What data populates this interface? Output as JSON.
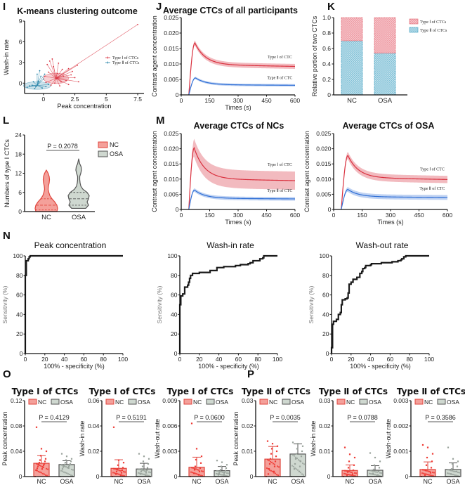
{
  "panels": {
    "I": {
      "letter": "I",
      "title": "K-means clustering outcome"
    },
    "J": {
      "letter": "J",
      "title": "Average CTCs of all participants"
    },
    "K": {
      "letter": "K"
    },
    "L": {
      "letter": "L"
    },
    "M": {
      "letter": "M",
      "title_nc": "Average CTCs of NCs",
      "title_osa": "Average CTCs of OSA"
    },
    "N": {
      "letter": "N"
    },
    "O": {
      "letter": "O"
    },
    "P": {
      "letter": "P"
    }
  },
  "colors": {
    "type1": "#d9303e",
    "type1_band": "#eda3aa",
    "type2": "#2f6fd6",
    "type2_band": "#a9c3ee",
    "cluster1": "#d9303e",
    "cluster2": "#1f7fa5",
    "nc_fill": "#f4a09a",
    "nc_stroke": "#e0463e",
    "osa_fill": "#cfd8d0",
    "osa_stroke": "#555555",
    "k_type1": "#e58a93",
    "k_type2": "#7fc0d6"
  },
  "chart_data": [
    {
      "id": "I",
      "type": "scatter",
      "title": "K-means clustering outcome",
      "xlabel": "Peak concentration",
      "ylabel": "Wash-in rate",
      "xlim": [
        -1.5,
        8
      ],
      "ylim": [
        -1.5,
        9
      ],
      "xticks": [
        "0",
        "2.5",
        "5",
        "7.5"
      ],
      "xtick_values": [
        0,
        2.5,
        5,
        7.5
      ],
      "yticks": [
        "0",
        "3",
        "6",
        "9"
      ],
      "ytick_values": [
        0,
        3,
        6,
        9
      ],
      "legend": [
        "Type Ⅰ of CTCs",
        "Type Ⅱ of CTCs"
      ],
      "legend_position": "right",
      "clusters": [
        {
          "name": "Type Ⅰ of CTCs",
          "center": [
            1.0,
            0.7
          ],
          "ellipse_radii": [
            1.0,
            0.75
          ],
          "points": [
            [
              0.3,
              2.7
            ],
            [
              0.5,
              3.2
            ],
            [
              0.7,
              3.5
            ],
            [
              0.8,
              2.4
            ],
            [
              1.2,
              2.9
            ],
            [
              1.5,
              2.0
            ],
            [
              2.0,
              2.1
            ],
            [
              2.7,
              2.6
            ],
            [
              2.2,
              1.2
            ],
            [
              2.5,
              0.8
            ],
            [
              2.8,
              0.2
            ],
            [
              2.0,
              -0.2
            ],
            [
              1.8,
              0.4
            ],
            [
              1.3,
              -0.4
            ],
            [
              0.6,
              -0.3
            ],
            [
              0.2,
              0.1
            ],
            [
              0.4,
              1.6
            ],
            [
              1.1,
              1.4
            ],
            [
              1.6,
              1.0
            ],
            [
              7.5,
              8.5
            ],
            [
              2.3,
              1.7
            ],
            [
              0.9,
              0.0
            ],
            [
              1.4,
              0.2
            ],
            [
              0.1,
              1.0
            ]
          ]
        },
        {
          "name": "Type Ⅱ of CTCs",
          "center": [
            -0.5,
            -0.35
          ],
          "ellipse_radii": [
            1.1,
            0.55
          ],
          "points": [
            [
              -0.3,
              1.8
            ],
            [
              -0.5,
              1.3
            ],
            [
              -0.2,
              1.0
            ],
            [
              0.0,
              0.6
            ],
            [
              -0.8,
              0.2
            ],
            [
              -1.1,
              -0.4
            ],
            [
              -1.3,
              -0.6
            ],
            [
              -0.7,
              -0.8
            ],
            [
              0.2,
              -0.5
            ],
            [
              0.4,
              -0.2
            ],
            [
              -0.4,
              0.3
            ],
            [
              -0.9,
              -0.3
            ],
            [
              0.1,
              1.3
            ],
            [
              -0.1,
              -0.7
            ],
            [
              -0.6,
              -0.5
            ]
          ]
        }
      ]
    },
    {
      "id": "J",
      "type": "line",
      "title": "Average CTCs of all participants",
      "xlabel": "Times (s)",
      "ylabel": "Contrast agent concentration",
      "xlim": [
        0,
        600
      ],
      "ylim": [
        0,
        0.025
      ],
      "xticks": [
        "0",
        "150",
        "300",
        "450",
        "600"
      ],
      "yticks": [
        "0",
        "0.005",
        "0.010",
        "0.015",
        "0.020",
        "0.025"
      ],
      "series": [
        {
          "name": "Type Ⅰ of CTC",
          "onset": 40,
          "peak_t": 72,
          "peak": 0.0168,
          "end": 0.0098,
          "band": 0.0008
        },
        {
          "name": "Type Ⅱ of CTC",
          "onset": 40,
          "peak_t": 75,
          "peak": 0.0055,
          "end": 0.0033,
          "band": 0.0004
        }
      ]
    },
    {
      "id": "K",
      "type": "bar",
      "stacked": true,
      "categories": [
        "NC",
        "OSA"
      ],
      "ylabel": "Relative portion of two CTCs",
      "ylim": [
        0,
        1.0
      ],
      "yticks": [
        "0",
        "0.2",
        "0.4",
        "0.6",
        "0.8",
        "1.0"
      ],
      "series": [
        {
          "name": "Type Ⅱ of CTCs",
          "values": [
            0.7,
            0.54
          ]
        },
        {
          "name": "Type Ⅰ of CTCs",
          "values": [
            0.3,
            0.46
          ]
        }
      ],
      "legend": [
        "Type Ⅰ of CTCs",
        "Type Ⅱ of CTCs"
      ],
      "legend_position": "top-right"
    },
    {
      "id": "L",
      "type": "violin",
      "categories": [
        "NC",
        "OSA"
      ],
      "ylabel": "Numbers of type Ⅰ CTCs",
      "ylim": [
        0,
        24
      ],
      "yticks": [
        "0",
        "6",
        "12",
        "18",
        "24"
      ],
      "p_value": "P = 0.2078",
      "legend": [
        "NC",
        "OSA"
      ],
      "legend_position": "top-right",
      "groups": [
        {
          "name": "NC",
          "min": 0,
          "max": 13,
          "median": 2,
          "q1": 0.5,
          "q3": 4
        },
        {
          "name": "OSA",
          "min": 1,
          "max": 16.5,
          "median": 4,
          "q1": 2,
          "q3": 6
        }
      ]
    },
    {
      "id": "M-NC",
      "type": "line",
      "title": "Average CTCs of NCs",
      "xlabel": "Times (s)",
      "ylabel": "Contrast agent concentration",
      "xlim": [
        0,
        600
      ],
      "ylim": [
        0,
        0.025
      ],
      "xticks": [
        "0",
        "150",
        "300",
        "450",
        "600"
      ],
      "yticks": [
        "0",
        "0.005",
        "0.010",
        "0.015",
        "0.020",
        "0.025"
      ],
      "series": [
        {
          "name": "Type Ⅰ of CTC",
          "onset": 40,
          "peak_t": 68,
          "peak": 0.0203,
          "end": 0.0101,
          "band": 0.003
        },
        {
          "name": "Type Ⅱ of CTC",
          "onset": 40,
          "peak_t": 70,
          "peak": 0.0064,
          "end": 0.0037,
          "band": 0.0006
        }
      ]
    },
    {
      "id": "M-OSA",
      "type": "line",
      "title": "Average CTCs of OSA",
      "xlabel": "Times (s)",
      "ylabel": "Contrast agent concentration",
      "xlim": [
        0,
        600
      ],
      "ylim": [
        0,
        0.025
      ],
      "xticks": [
        "0",
        "150",
        "300",
        "450",
        "600"
      ],
      "yticks": [
        "0",
        "0.005",
        "0.010",
        "0.015",
        "0.020",
        "0.025"
      ],
      "series": [
        {
          "name": "Type Ⅰ of CTC",
          "onset": 40,
          "peak_t": 75,
          "peak": 0.0178,
          "end": 0.0105,
          "band": 0.0012
        },
        {
          "name": "Type Ⅱ of CTC",
          "onset": 40,
          "peak_t": 75,
          "peak": 0.0066,
          "end": 0.0042,
          "band": 0.0008
        }
      ]
    },
    {
      "id": "N-peak",
      "type": "line",
      "title": "Peak concentration",
      "xlabel": "100% - specificity (%)",
      "ylabel": "Sensitivity (%)",
      "xlim": [
        0,
        100
      ],
      "ylim": [
        0,
        100
      ],
      "xticks": [
        "0",
        "20",
        "40",
        "60",
        "80",
        "100"
      ],
      "yticks": [
        "0",
        "20",
        "40",
        "60",
        "80",
        "100"
      ],
      "points": [
        [
          0,
          0
        ],
        [
          0,
          80
        ],
        [
          1,
          80
        ],
        [
          1,
          95
        ],
        [
          3,
          97
        ],
        [
          4,
          99
        ],
        [
          5,
          100
        ],
        [
          100,
          100
        ]
      ]
    },
    {
      "id": "N-washin",
      "type": "line",
      "title": "Wash-in rate",
      "xlabel": "100% - specificity (%)",
      "ylabel": "Sensitivity (%)",
      "xlim": [
        0,
        100
      ],
      "ylim": [
        0,
        100
      ],
      "xticks": [
        "0",
        "20",
        "40",
        "60",
        "80",
        "100"
      ],
      "yticks": [
        "0",
        "20",
        "40",
        "60",
        "80",
        "100"
      ],
      "points": [
        [
          0,
          0
        ],
        [
          0,
          50
        ],
        [
          1,
          50
        ],
        [
          1,
          59
        ],
        [
          3,
          61
        ],
        [
          5,
          62
        ],
        [
          5,
          68
        ],
        [
          8,
          70
        ],
        [
          9,
          73
        ],
        [
          10,
          77
        ],
        [
          11,
          80
        ],
        [
          13,
          82
        ],
        [
          20,
          82
        ],
        [
          20,
          83
        ],
        [
          30,
          83
        ],
        [
          31,
          85
        ],
        [
          38,
          85
        ],
        [
          38,
          88
        ],
        [
          45,
          88
        ],
        [
          45,
          89
        ],
        [
          55,
          89
        ],
        [
          57,
          90
        ],
        [
          62,
          91
        ],
        [
          68,
          91
        ],
        [
          70,
          92
        ],
        [
          72,
          93
        ],
        [
          75,
          95
        ],
        [
          82,
          95
        ],
        [
          82,
          97
        ],
        [
          85,
          98
        ],
        [
          86,
          100
        ],
        [
          100,
          100
        ]
      ]
    },
    {
      "id": "N-washout",
      "type": "line",
      "title": "Wash-out rate",
      "xlabel": "100% - specificity (%)",
      "ylabel": "Sensitivity (%)",
      "xlim": [
        0,
        100
      ],
      "ylim": [
        0,
        100
      ],
      "xticks": [
        "0",
        "20",
        "40",
        "60",
        "80",
        "100"
      ],
      "yticks": [
        "0",
        "20",
        "40",
        "60",
        "80",
        "100"
      ],
      "points": [
        [
          0,
          0
        ],
        [
          0,
          6
        ],
        [
          1,
          7
        ],
        [
          1,
          30
        ],
        [
          2,
          33
        ],
        [
          4,
          33
        ],
        [
          5,
          35
        ],
        [
          7,
          36
        ],
        [
          7,
          40
        ],
        [
          9,
          42
        ],
        [
          10,
          46
        ],
        [
          10,
          50
        ],
        [
          11,
          52
        ],
        [
          11,
          55
        ],
        [
          14,
          56
        ],
        [
          16,
          57
        ],
        [
          17,
          62
        ],
        [
          18,
          68
        ],
        [
          18,
          71
        ],
        [
          20,
          73
        ],
        [
          22,
          73
        ],
        [
          22,
          76
        ],
        [
          25,
          76
        ],
        [
          26,
          78
        ],
        [
          29,
          78
        ],
        [
          29,
          82
        ],
        [
          31,
          84
        ],
        [
          32,
          87
        ],
        [
          34,
          88
        ],
        [
          35,
          90
        ],
        [
          40,
          91
        ],
        [
          41,
          92
        ],
        [
          50,
          92
        ],
        [
          51,
          93
        ],
        [
          60,
          93
        ],
        [
          62,
          94
        ],
        [
          68,
          95
        ],
        [
          71,
          96
        ],
        [
          72,
          97
        ],
        [
          74,
          99
        ],
        [
          76,
          100
        ],
        [
          100,
          100
        ]
      ]
    },
    {
      "id": "O-peak",
      "type": "bar",
      "title": "Type Ⅰ of CTCs",
      "ylabel": "Peak concentration",
      "categories": [
        "NC",
        "OSA"
      ],
      "ylim": [
        0,
        0.12
      ],
      "yticks": [
        "0",
        "0.04",
        "0.08",
        "0.12"
      ],
      "values": [
        0.021,
        0.019
      ],
      "errors": [
        0.012,
        0.006
      ],
      "p_value": "P = 0.4129",
      "legend": [
        "NC",
        "OSA"
      ],
      "points_nc": [
        0.078,
        0.044,
        0.04,
        0.033,
        0.028,
        0.026,
        0.024,
        0.022,
        0.02,
        0.019,
        0.018,
        0.016,
        0.015,
        0.013,
        0.012,
        0.01
      ],
      "points_osa": [
        0.036,
        0.032,
        0.028,
        0.026,
        0.024,
        0.022,
        0.02,
        0.019,
        0.018,
        0.017,
        0.016,
        0.015,
        0.014,
        0.012
      ]
    },
    {
      "id": "O-washin",
      "type": "bar",
      "title": "Type Ⅰ of CTCs",
      "ylabel": "Wash-in rate",
      "categories": [
        "NC",
        "OSA"
      ],
      "ylim": [
        0,
        0.06
      ],
      "yticks": [
        "0",
        "0.02",
        "0.04",
        "0.06"
      ],
      "values": [
        0.0065,
        0.006
      ],
      "errors": [
        0.0068,
        0.0045
      ],
      "p_value": "P = 0.5191",
      "legend": [
        "NC",
        "OSA"
      ],
      "points_nc": [
        0.039,
        0.013,
        0.011,
        0.009,
        0.007,
        0.006,
        0.005,
        0.004,
        0.003,
        0.002,
        0.001
      ],
      "points_osa": [
        0.018,
        0.016,
        0.014,
        0.012,
        0.01,
        0.008,
        0.007,
        0.006,
        0.005,
        0.004,
        0.003,
        0.002,
        0.001
      ]
    },
    {
      "id": "O-washout",
      "type": "bar",
      "title": "Type Ⅰ of CTCs",
      "ylabel": "Wash-out rate",
      "categories": [
        "NC",
        "OSA"
      ],
      "ylim": [
        0,
        0.009
      ],
      "yticks": [
        "0",
        "0.003",
        "0.006",
        "0.009"
      ],
      "values": [
        0.0011,
        0.0007
      ],
      "errors": [
        0.0012,
        0.0005
      ],
      "p_value": "P = 0.0600",
      "legend": [
        "NC",
        "OSA"
      ],
      "points_nc": [
        0.0063,
        0.0033,
        0.0024,
        0.002,
        0.0016,
        0.0012,
        0.001,
        0.0008,
        0.0006,
        0.0004,
        0.0002
      ],
      "points_osa": [
        0.0019,
        0.0017,
        0.0014,
        0.0012,
        0.001,
        0.0008,
        0.0007,
        0.0006,
        0.0005,
        0.0004,
        0.0003,
        0.0002
      ]
    },
    {
      "id": "P-peak",
      "type": "bar",
      "title": "Type Ⅱ of CTCs",
      "ylabel": "Peak concentration",
      "categories": [
        "NC",
        "OSA"
      ],
      "ylim": [
        0,
        0.03
      ],
      "yticks": [
        "0",
        "0.01",
        "0.02",
        "0.03"
      ],
      "values": [
        0.0069,
        0.0089
      ],
      "errors": [
        0.005,
        0.004
      ],
      "p_value": "P = 0.0035",
      "legend": [
        "NC",
        "OSA"
      ],
      "points_nc": [
        0.014,
        0.013,
        0.012,
        0.011,
        0.01,
        0.009,
        0.008,
        0.007,
        0.006,
        0.005,
        0.004,
        0.003,
        0.002,
        0.001
      ],
      "points_osa": [
        0.0135,
        0.013,
        0.012,
        0.011,
        0.01,
        0.009,
        0.008,
        0.007,
        0.006,
        0.005,
        0.004,
        0.003,
        0.002
      ]
    },
    {
      "id": "P-washin",
      "type": "bar",
      "title": "Type Ⅱ of CTCs",
      "ylabel": "Wash-in rate",
      "categories": [
        "NC",
        "OSA"
      ],
      "ylim": [
        0,
        0.03
      ],
      "yticks": [
        "0",
        "0.01",
        "0.02",
        "0.03"
      ],
      "values": [
        0.0024,
        0.0025
      ],
      "errors": [
        0.0022,
        0.0018
      ],
      "p_value": "P = 0.0788",
      "legend": [
        "NC",
        "OSA"
      ],
      "points_nc": [
        0.0115,
        0.0088,
        0.0075,
        0.006,
        0.0045,
        0.0035,
        0.0025,
        0.0018,
        0.001,
        0.0005
      ],
      "points_osa": [
        0.0093,
        0.0075,
        0.006,
        0.0045,
        0.0035,
        0.0028,
        0.002,
        0.0012,
        0.0006
      ]
    },
    {
      "id": "P-washout",
      "type": "bar",
      "title": "Type Ⅱ of CTCs",
      "ylabel": "Wash-out rate",
      "categories": [
        "NC",
        "OSA"
      ],
      "ylim": [
        0,
        0.003
      ],
      "yticks": [
        "0",
        "0.001",
        "0.002",
        "0.003"
      ],
      "values": [
        0.00028,
        0.00028
      ],
      "errors": [
        0.0003,
        0.00026
      ],
      "p_value": "P = 0.3586",
      "legend": [
        "NC",
        "OSA"
      ],
      "points_nc": [
        0.00125,
        0.00115,
        0.0009,
        0.00075,
        0.0006,
        0.00045,
        0.00035,
        0.00025,
        0.00015,
        5e-05
      ],
      "points_osa": [
        0.00115,
        0.0007,
        0.0006,
        0.0005,
        0.0004,
        0.0003,
        0.0002,
        0.0001
      ]
    }
  ]
}
